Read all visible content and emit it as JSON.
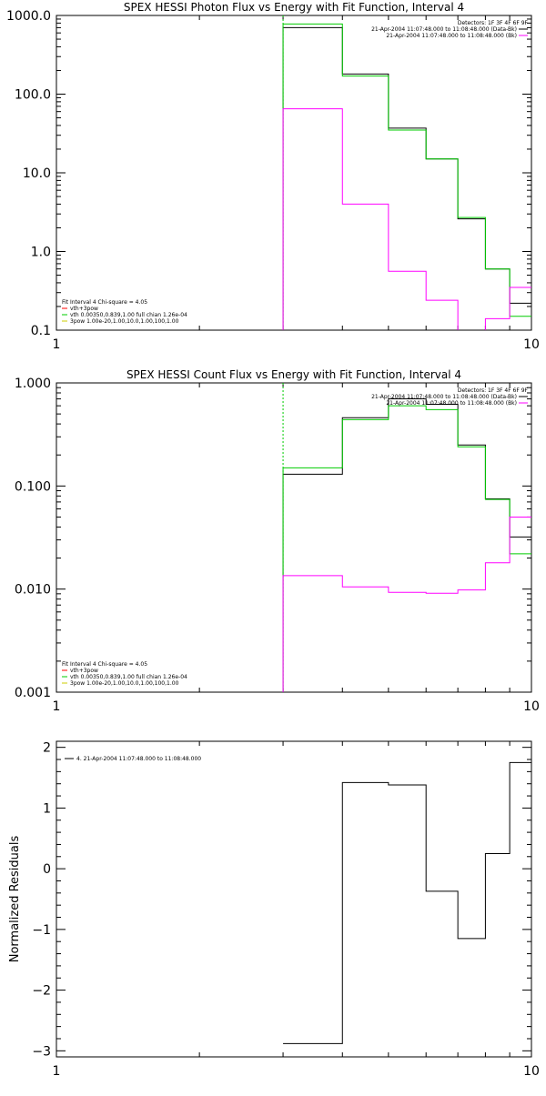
{
  "chart_data": [
    {
      "type": "line",
      "title": "SPEX HESSI Photon Flux vs Energy with Fit Function, Interval 4",
      "xlabel": "",
      "ylabel": "",
      "xscale": "log",
      "yscale": "log",
      "xlim": [
        1,
        10
      ],
      "ylim": [
        0.1,
        1000
      ],
      "x_ticks": [
        "1",
        "10"
      ],
      "y_ticks": [
        "0.1",
        "1.0",
        "10.0",
        "100.0",
        "1000.0"
      ],
      "y_tick_values": [
        0.1,
        1,
        10,
        100,
        1000
      ],
      "bin_edges": [
        3,
        4,
        5,
        6,
        7,
        8,
        9,
        10
      ],
      "series": [
        {
          "color": "#000000",
          "values": [
            700,
            180,
            37,
            15,
            2.6,
            0.6,
            0.22
          ]
        },
        {
          "color": "#00cc00",
          "values": [
            780,
            170,
            35,
            15,
            2.7,
            0.6,
            0.15
          ]
        },
        {
          "color": "#ff00ff",
          "values": [
            65,
            4,
            0.56,
            0.24,
            0.095,
            0.14,
            0.35
          ]
        }
      ],
      "vline": {
        "x": 3,
        "color": "#00cc00"
      },
      "legend_top_right": [
        "Detectors: 1F 3F 4F 6F 9F",
        "21-Apr-2004 11:07:48.000 to 11:08:48.000 (Data-Bk)",
        "21-Apr-2004 11:07:48.000 to 11:08:48.000 (Bk)"
      ],
      "legend_bottom_left": [
        {
          "text": "Fit Interval 4   Chi-square = 4.05",
          "color": ""
        },
        {
          "text": "vth+3pow",
          "color": "#ff0000"
        },
        {
          "text": "vth 0.00350,0.839,1.00   full chian 1.26e-04",
          "color": "#00cc00"
        },
        {
          "text": "3pow 1.00e-20,1.00,10.0,1.00,100,1.00",
          "color": "#cccc00"
        }
      ]
    },
    {
      "type": "line",
      "title": "SPEX HESSI Count Flux vs Energy with Fit Function, Interval 4",
      "xlabel": "",
      "ylabel": "",
      "xscale": "log",
      "yscale": "log",
      "xlim": [
        1,
        10
      ],
      "ylim": [
        0.001,
        1
      ],
      "x_ticks": [
        "1",
        "10"
      ],
      "y_ticks": [
        "0.001",
        "0.010",
        "0.100",
        "1.000"
      ],
      "y_tick_values": [
        0.001,
        0.01,
        0.1,
        1
      ],
      "bin_edges": [
        3,
        4,
        5,
        6,
        7,
        8,
        9,
        10
      ],
      "series": [
        {
          "color": "#000000",
          "values": [
            0.13,
            0.46,
            0.7,
            0.62,
            0.25,
            0.075,
            0.032
          ]
        },
        {
          "color": "#00cc00",
          "values": [
            0.15,
            0.44,
            0.6,
            0.55,
            0.24,
            0.074,
            0.022
          ]
        },
        {
          "color": "#ff00ff",
          "values": [
            0.0135,
            0.0105,
            0.0093,
            0.0091,
            0.0098,
            0.018,
            0.05
          ]
        }
      ],
      "vline": {
        "x": 3,
        "color": "#00cc00"
      },
      "legend_top_right": [
        "Detectors: 1F 3F 4F 6F 9F",
        "21-Apr-2004 11:07:48.000 to 11:08:48.000 (Data-Bk)",
        "21-Apr-2004 11:07:48.000 to 11:08:48.000 (Bk)"
      ],
      "legend_bottom_left": [
        {
          "text": "Fit Interval 4   Chi-square = 4.05",
          "color": ""
        },
        {
          "text": "vth+3pow",
          "color": "#ff0000"
        },
        {
          "text": "vth 0.00350,0.839,1.00   full chian 1.26e-04",
          "color": "#00cc00"
        },
        {
          "text": "3pow 1.00e-20,1.00,10.0,1.00,100,1.00",
          "color": "#cccc00"
        }
      ]
    },
    {
      "type": "line",
      "title": "",
      "xlabel": "",
      "ylabel": "Normalized Residuals",
      "xscale": "log",
      "yscale": "linear",
      "xlim": [
        1,
        10
      ],
      "ylim": [
        -3.1,
        2.1
      ],
      "x_ticks": [
        "1",
        "10"
      ],
      "y_ticks": [
        "−3",
        "−2",
        "−1",
        "0",
        "1",
        "2"
      ],
      "y_tick_values": [
        -3,
        -2,
        -1,
        0,
        1,
        2
      ],
      "bin_edges": [
        3,
        4,
        5,
        6,
        7,
        8,
        9,
        10
      ],
      "series": [
        {
          "color": "#000000",
          "values": [
            -2.88,
            1.42,
            1.38,
            -0.37,
            -1.15,
            0.25,
            1.75
          ]
        }
      ],
      "legend_top_left": [
        {
          "text": "4. 21-Apr-2004 11:07:48.000 to 11:08:48.000",
          "color": "#000000"
        }
      ]
    }
  ]
}
